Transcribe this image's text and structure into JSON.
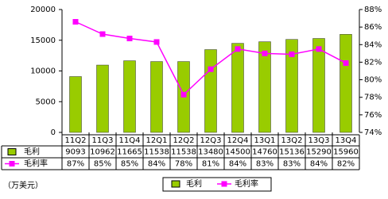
{
  "chart_data": {
    "type": "bar",
    "categories": [
      "11Q2",
      "11Q3",
      "11Q4",
      "12Q1",
      "12Q2",
      "12Q3",
      "12Q4",
      "13Q1",
      "13Q2",
      "13Q3",
      "13Q4"
    ],
    "series": [
      {
        "name": "毛利",
        "type": "bar",
        "color": "#99cc00",
        "values": [
          9093,
          10962,
          11665,
          11538,
          11538,
          13480,
          14500,
          14760,
          15136,
          15290,
          15960
        ]
      },
      {
        "name": "毛利率",
        "type": "line",
        "axis": "y2",
        "color": "#ff00ff",
        "values": [
          86.6,
          85.2,
          84.7,
          84.3,
          78.3,
          81.2,
          83.5,
          83.0,
          82.9,
          83.5,
          81.9
        ],
        "value_labels": [
          "87%",
          "85%",
          "85%",
          "84%",
          "78%",
          "81%",
          "84%",
          "83%",
          "83%",
          "84%",
          "82%"
        ]
      }
    ],
    "ylim": [
      0,
      20000
    ],
    "yticks": [
      0,
      5000,
      10000,
      15000,
      20000
    ],
    "y2lim": [
      74,
      88
    ],
    "y2ticks": [
      {
        "value": 74,
        "label": "74%"
      },
      {
        "value": 76,
        "label": "76%"
      },
      {
        "value": 78,
        "label": "78%"
      },
      {
        "value": 80,
        "label": "80%"
      },
      {
        "value": 82,
        "label": "82%"
      },
      {
        "value": 84,
        "label": "84%"
      },
      {
        "value": 86,
        "label": "86%"
      },
      {
        "value": 88,
        "label": "88%"
      }
    ],
    "unit_note": "（万美元）"
  }
}
